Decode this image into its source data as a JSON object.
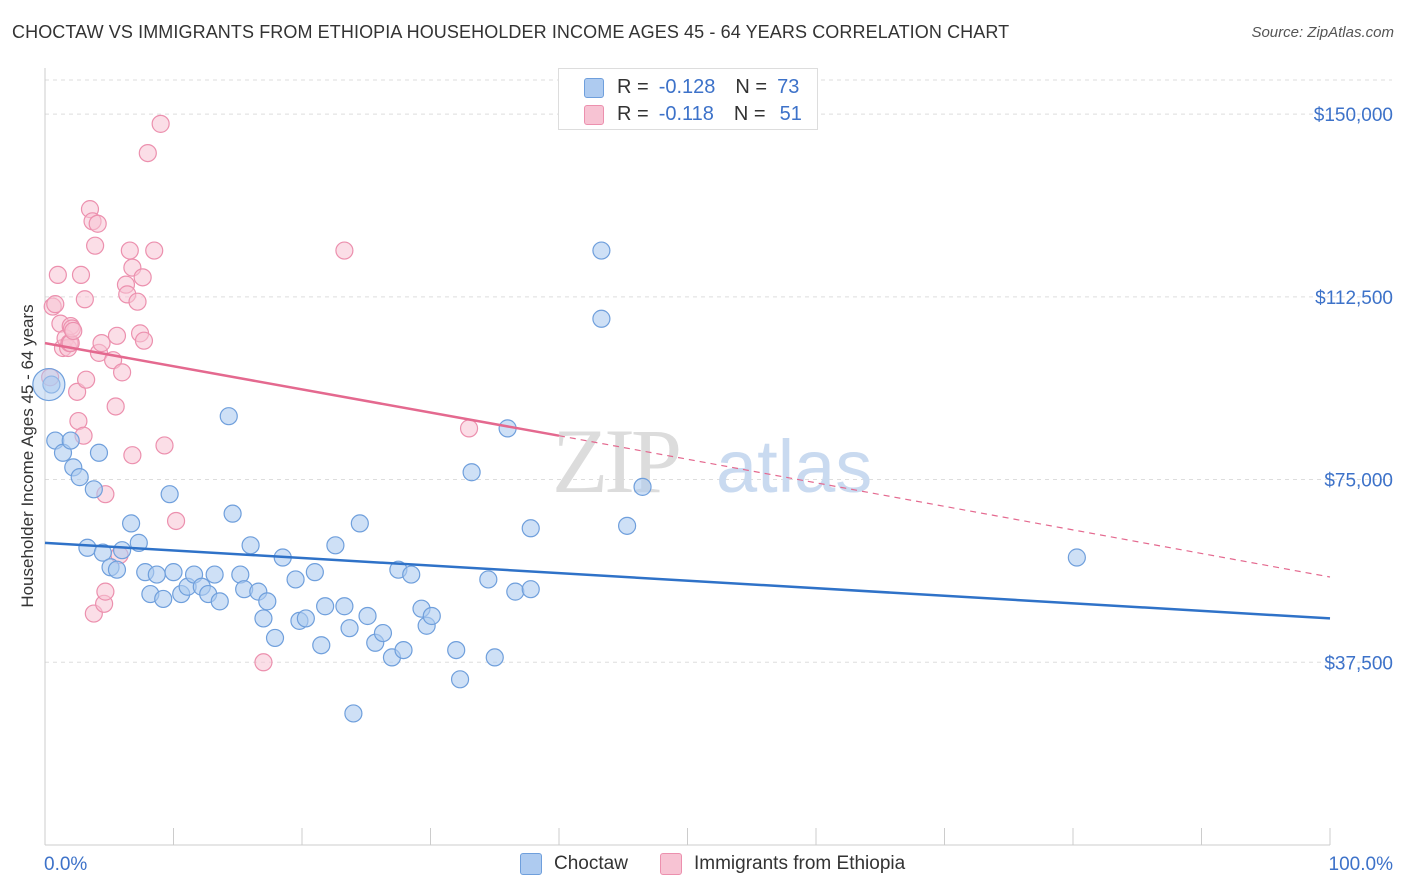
{
  "title": "CHOCTAW VS IMMIGRANTS FROM ETHIOPIA HOUSEHOLDER INCOME AGES 45 - 64 YEARS CORRELATION CHART",
  "source": "Source: ZipAtlas.com",
  "legend": {
    "rows": [
      {
        "r_label": "R =",
        "r_value": "-0.128",
        "n_label": "N =",
        "n_value": "73"
      },
      {
        "r_label": "R =",
        "r_value": "-0.118",
        "n_label": "N =",
        "n_value": "51"
      }
    ]
  },
  "bottom_legend": {
    "series1": "Choctaw",
    "series2": "Immigrants from Ethiopia"
  },
  "colors": {
    "choctaw_fill": "#aecbf0",
    "choctaw_stroke": "#6f9fdc",
    "choctaw_line": "#2f72c8",
    "ethiopia_fill": "#f7c3d3",
    "ethiopia_stroke": "#ec90ae",
    "ethiopia_line": "#e4698f",
    "axis_label": "#3d72c9",
    "grid": "#dddddd"
  },
  "chart_data": {
    "type": "scatter",
    "title": "CHOCTAW VS IMMIGRANTS FROM ETHIOPIA HOUSEHOLDER INCOME AGES 45 - 64 YEARS CORRELATION CHART",
    "xlabel": "",
    "ylabel": "Householder Income Ages 45 - 64 years",
    "xlim": [
      0,
      100
    ],
    "ylim": [
      0,
      157000
    ],
    "x_tick_labels": [
      "0.0%",
      "100.0%"
    ],
    "y_ticks": [
      37500,
      75000,
      112500,
      150000
    ],
    "y_tick_labels": [
      "$37,500",
      "$75,000",
      "$112,500",
      "$150,000"
    ],
    "grid": true,
    "legend_position": "top-center",
    "watermark": "ZIPatlas",
    "series": [
      {
        "name": "Choctaw",
        "r": -0.128,
        "n": 73,
        "trend": {
          "x0": 0,
          "y0": 62000,
          "x1": 100,
          "y1": 46500
        },
        "points": [
          [
            0.5,
            94500
          ],
          [
            0.8,
            83000
          ],
          [
            1.4,
            80500
          ],
          [
            2.0,
            83000
          ],
          [
            2.2,
            77500
          ],
          [
            2.7,
            75500
          ],
          [
            3.3,
            61000
          ],
          [
            3.8,
            73000
          ],
          [
            4.2,
            80500
          ],
          [
            4.5,
            60000
          ],
          [
            5.1,
            57000
          ],
          [
            5.6,
            56500
          ],
          [
            6.0,
            60500
          ],
          [
            6.7,
            66000
          ],
          [
            7.3,
            62000
          ],
          [
            7.8,
            56000
          ],
          [
            8.2,
            51500
          ],
          [
            8.7,
            55500
          ],
          [
            9.2,
            50500
          ],
          [
            9.7,
            72000
          ],
          [
            10.0,
            56000
          ],
          [
            10.6,
            51500
          ],
          [
            11.1,
            53000
          ],
          [
            11.6,
            55500
          ],
          [
            12.2,
            53000
          ],
          [
            12.7,
            51500
          ],
          [
            13.2,
            55500
          ],
          [
            13.6,
            50000
          ],
          [
            14.3,
            88000
          ],
          [
            14.6,
            68000
          ],
          [
            15.2,
            55500
          ],
          [
            15.5,
            52500
          ],
          [
            16.0,
            61500
          ],
          [
            16.6,
            52000
          ],
          [
            17.0,
            46500
          ],
          [
            17.3,
            50000
          ],
          [
            17.9,
            42500
          ],
          [
            18.5,
            59000
          ],
          [
            19.5,
            54500
          ],
          [
            19.8,
            46000
          ],
          [
            20.3,
            46500
          ],
          [
            21.0,
            56000
          ],
          [
            21.5,
            41000
          ],
          [
            21.8,
            49000
          ],
          [
            22.6,
            61500
          ],
          [
            23.3,
            49000
          ],
          [
            23.7,
            44500
          ],
          [
            24.0,
            27000
          ],
          [
            24.5,
            66000
          ],
          [
            25.1,
            47000
          ],
          [
            25.7,
            41500
          ],
          [
            26.3,
            43500
          ],
          [
            27.0,
            38500
          ],
          [
            27.5,
            56500
          ],
          [
            27.9,
            40000
          ],
          [
            28.5,
            55500
          ],
          [
            29.3,
            48500
          ],
          [
            29.7,
            45000
          ],
          [
            30.1,
            47000
          ],
          [
            32.0,
            40000
          ],
          [
            32.3,
            34000
          ],
          [
            33.2,
            76500
          ],
          [
            34.5,
            54500
          ],
          [
            35.0,
            38500
          ],
          [
            36.0,
            85500
          ],
          [
            36.6,
            52000
          ],
          [
            37.8,
            52500
          ],
          [
            37.8,
            65000
          ],
          [
            43.3,
            122000
          ],
          [
            43.3,
            108000
          ],
          [
            45.3,
            65500
          ],
          [
            46.5,
            73500
          ],
          [
            80.3,
            59000
          ]
        ]
      },
      {
        "name": "Immigrants from Ethiopia",
        "r": -0.118,
        "n": 51,
        "trend": {
          "x0": 0,
          "y0": 103000,
          "x1": 40,
          "y1": 84000
        },
        "trend_dashed": {
          "x0": 40,
          "y0": 84000,
          "x1": 100,
          "y1": 55000
        },
        "points": [
          [
            0.4,
            96000
          ],
          [
            0.6,
            110500
          ],
          [
            0.8,
            111000
          ],
          [
            1.0,
            117000
          ],
          [
            1.2,
            107000
          ],
          [
            1.4,
            102000
          ],
          [
            1.6,
            104000
          ],
          [
            1.8,
            102000
          ],
          [
            1.9,
            103000
          ],
          [
            2.0,
            103000
          ],
          [
            2.0,
            106500
          ],
          [
            2.1,
            106000
          ],
          [
            2.2,
            105500
          ],
          [
            2.5,
            93000
          ],
          [
            2.6,
            87000
          ],
          [
            2.8,
            117000
          ],
          [
            3.0,
            84000
          ],
          [
            3.1,
            112000
          ],
          [
            3.2,
            95500
          ],
          [
            3.5,
            130500
          ],
          [
            3.7,
            128000
          ],
          [
            3.8,
            47500
          ],
          [
            3.9,
            123000
          ],
          [
            4.1,
            127500
          ],
          [
            4.2,
            101000
          ],
          [
            4.4,
            103000
          ],
          [
            4.6,
            49500
          ],
          [
            4.7,
            52000
          ],
          [
            4.7,
            72000
          ],
          [
            5.3,
            99500
          ],
          [
            5.5,
            90000
          ],
          [
            5.6,
            104500
          ],
          [
            5.8,
            59500
          ],
          [
            6.0,
            97000
          ],
          [
            6.3,
            115000
          ],
          [
            6.4,
            113000
          ],
          [
            6.6,
            122000
          ],
          [
            6.8,
            80000
          ],
          [
            6.8,
            118500
          ],
          [
            7.2,
            111500
          ],
          [
            7.4,
            105000
          ],
          [
            7.6,
            116500
          ],
          [
            7.7,
            103500
          ],
          [
            8.0,
            142000
          ],
          [
            8.5,
            122000
          ],
          [
            9.0,
            148000
          ],
          [
            9.3,
            82000
          ],
          [
            10.2,
            66500
          ],
          [
            17.0,
            37500
          ],
          [
            23.3,
            122000
          ],
          [
            33.0,
            85500
          ]
        ]
      }
    ]
  }
}
